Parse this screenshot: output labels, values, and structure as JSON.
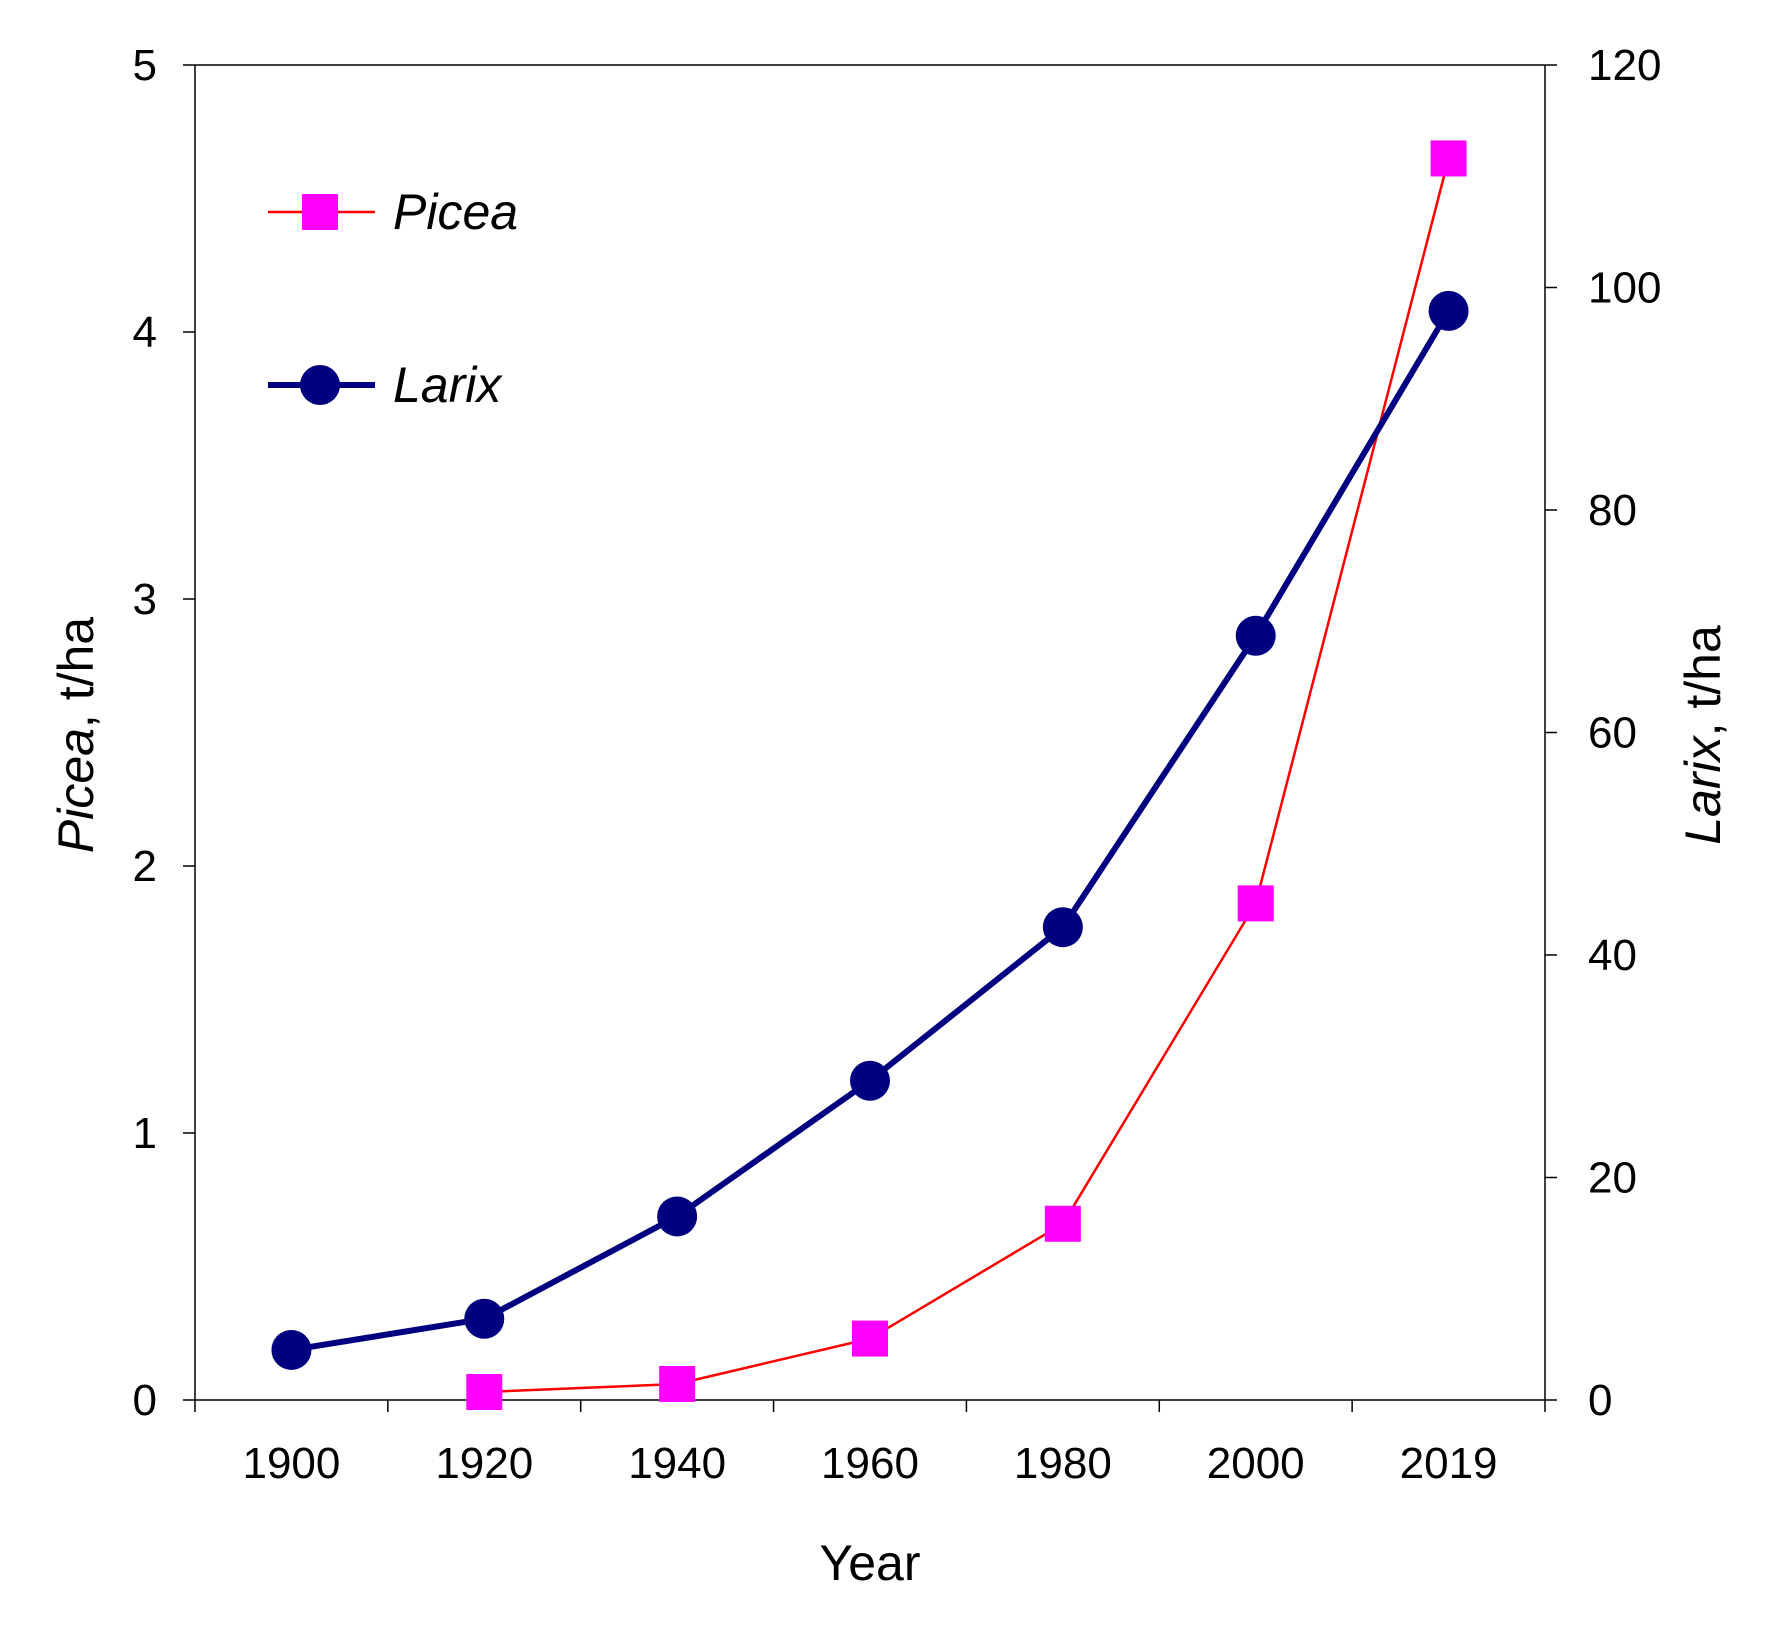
{
  "chart_data": {
    "type": "line",
    "title": "",
    "xlabel": "Year",
    "categories": [
      "1900",
      "1920",
      "1940",
      "1960",
      "1980",
      "2000",
      "2019"
    ],
    "y_left": {
      "label_species": "Picea",
      "label_unit": ", t/ha",
      "lim": [
        0,
        5
      ],
      "ticks": [
        "0",
        "1",
        "2",
        "3",
        "4",
        "5"
      ]
    },
    "y_right": {
      "label_species": "Larix",
      "label_unit": ", t/ha",
      "lim": [
        0,
        120
      ],
      "ticks": [
        "0",
        "20",
        "40",
        "60",
        "80",
        "100",
        "120"
      ]
    },
    "series": [
      {
        "name": "Picea",
        "axis": "left",
        "color": "#ff0000",
        "marker_color": "#ff00ff",
        "marker": "square",
        "values": [
          null,
          0.03,
          0.06,
          0.23,
          0.66,
          1.86,
          4.65
        ]
      },
      {
        "name": "Larix",
        "axis": "right",
        "color": "#000080",
        "marker_color": "#000080",
        "marker": "circle",
        "values": [
          4.5,
          7.3,
          16.5,
          28.7,
          42.5,
          68.7,
          97.9
        ]
      }
    ],
    "legend_position": "top-left",
    "grid": false
  }
}
